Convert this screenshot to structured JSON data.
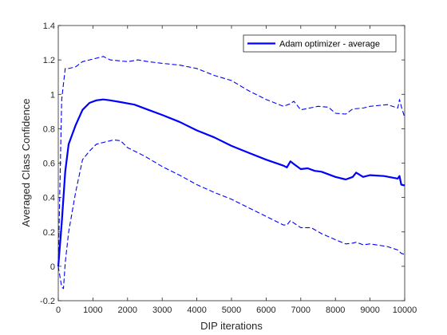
{
  "chart_data": {
    "type": "line",
    "title": "",
    "xlabel": "DIP iterations",
    "ylabel": "Averaged Class Confidence",
    "xlim": [
      0,
      10000
    ],
    "ylim": [
      -0.2,
      1.4
    ],
    "xticks": [
      0,
      1000,
      2000,
      3000,
      4000,
      5000,
      6000,
      7000,
      8000,
      9000,
      10000
    ],
    "xtick_labels": [
      "0",
      "1000",
      "2000",
      "3000",
      "4000",
      "5000",
      "6000",
      "7000",
      "8000",
      "9000",
      "10000"
    ],
    "yticks": [
      -0.2,
      0,
      0.2,
      0.4,
      0.6,
      0.8,
      1,
      1.2,
      1.4
    ],
    "ytick_labels": [
      "-0.2",
      "0",
      "0.2",
      "0.4",
      "0.6",
      "0.8",
      "1",
      "1.2",
      "1.4"
    ],
    "grid": false,
    "legend": {
      "position": "top-right"
    },
    "series": [
      {
        "name": "Adam optimizer - average",
        "style": "solid",
        "color": "#0000ff",
        "x": [
          0,
          100,
          200,
          300,
          500,
          700,
          900,
          1100,
          1300,
          1500,
          1800,
          2200,
          2600,
          3000,
          3500,
          4000,
          4500,
          5000,
          5500,
          6000,
          6500,
          6600,
          6700,
          6800,
          7000,
          7200,
          7400,
          7600,
          8000,
          8300,
          8500,
          8600,
          8800,
          9000,
          9400,
          9800,
          9850,
          9900,
          10000
        ],
        "y": [
          0,
          0.25,
          0.55,
          0.71,
          0.82,
          0.91,
          0.95,
          0.965,
          0.97,
          0.965,
          0.955,
          0.94,
          0.91,
          0.88,
          0.84,
          0.79,
          0.75,
          0.7,
          0.66,
          0.62,
          0.585,
          0.575,
          0.61,
          0.595,
          0.565,
          0.57,
          0.555,
          0.55,
          0.52,
          0.505,
          0.52,
          0.545,
          0.52,
          0.53,
          0.525,
          0.51,
          0.525,
          0.475,
          0.47
        ]
      },
      {
        "name": "",
        "style": "dashed",
        "color": "#0000ff",
        "x": [
          0,
          100,
          200,
          300,
          500,
          700,
          900,
          1100,
          1300,
          1500,
          2000,
          2300,
          2600,
          3000,
          3500,
          4000,
          4500,
          5000,
          5500,
          6000,
          6500,
          6700,
          6800,
          7000,
          7500,
          7800,
          8000,
          8300,
          8500,
          8800,
          9000,
          9500,
          9800,
          9850,
          9900,
          10000
        ],
        "y": [
          0,
          0.97,
          1.15,
          1.15,
          1.16,
          1.19,
          1.2,
          1.21,
          1.22,
          1.2,
          1.19,
          1.2,
          1.19,
          1.18,
          1.17,
          1.15,
          1.11,
          1.08,
          1.02,
          0.97,
          0.93,
          0.945,
          0.96,
          0.91,
          0.93,
          0.925,
          0.89,
          0.885,
          0.915,
          0.92,
          0.93,
          0.94,
          0.92,
          0.97,
          0.93,
          0.865
        ]
      },
      {
        "name": "",
        "style": "dashed",
        "color": "#0000ff",
        "x": [
          0,
          100,
          150,
          200,
          300,
          500,
          700,
          900,
          1100,
          1300,
          1600,
          1800,
          2000,
          2500,
          3000,
          3500,
          4000,
          4500,
          5000,
          5500,
          6000,
          6500,
          6600,
          6700,
          7000,
          7300,
          7600,
          8000,
          8300,
          8500,
          8600,
          8800,
          9000,
          9500,
          9800,
          9900,
          10000
        ],
        "y": [
          0,
          -0.12,
          -0.13,
          0.02,
          0.2,
          0.43,
          0.62,
          0.67,
          0.71,
          0.72,
          0.735,
          0.73,
          0.69,
          0.64,
          0.58,
          0.53,
          0.475,
          0.43,
          0.39,
          0.34,
          0.29,
          0.24,
          0.24,
          0.265,
          0.225,
          0.225,
          0.19,
          0.155,
          0.13,
          0.135,
          0.14,
          0.125,
          0.13,
          0.115,
          0.095,
          0.075,
          0.07
        ]
      }
    ]
  }
}
